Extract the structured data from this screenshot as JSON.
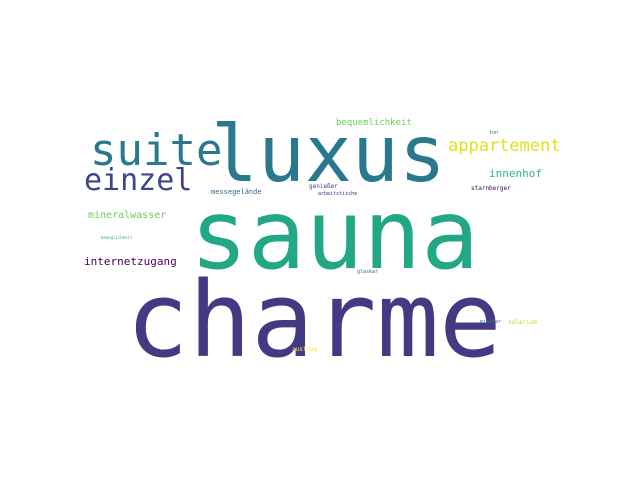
{
  "wordcloud": {
    "words": [
      {
        "text": "sauna",
        "color": "#22a884"
      },
      {
        "text": "charme",
        "color": "#443983"
      },
      {
        "text": "luxus",
        "color": "#2a788e"
      },
      {
        "text": "suite",
        "color": "#2a788e"
      },
      {
        "text": "einzel",
        "color": "#414487"
      },
      {
        "text": "appartement",
        "color": "#dde318"
      },
      {
        "text": "innenhof",
        "color": "#35b779"
      },
      {
        "text": "bequemlichkeit",
        "color": "#6ece58"
      },
      {
        "text": "mineralwasser",
        "color": "#6ece58"
      },
      {
        "text": "internetzugang",
        "color": "#440154"
      },
      {
        "text": "messegelände",
        "color": "#31688e"
      },
      {
        "text": "genießer",
        "color": "#3e4989"
      },
      {
        "text": "arbeitstische",
        "color": "#482878"
      },
      {
        "text": "starnberger",
        "color": "#440154"
      },
      {
        "text": "ton",
        "color": "#31688e"
      },
      {
        "text": "beweglichkeit",
        "color": "#35b779"
      },
      {
        "text": "glaskar",
        "color": "#31688e"
      },
      {
        "text": "solarium",
        "color": "#b5de2b"
      },
      {
        "text": "minibar",
        "color": "#26828e"
      },
      {
        "text": "ausflug",
        "color": "#fde725"
      }
    ]
  }
}
